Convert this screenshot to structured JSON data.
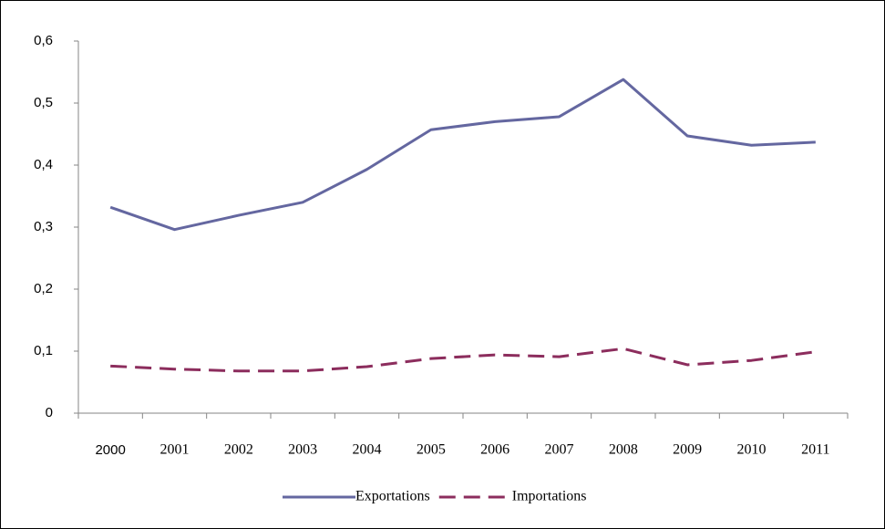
{
  "chart_data": {
    "type": "line",
    "categories": [
      "2000",
      "2001",
      "2002",
      "2003",
      "2004",
      "2005",
      "2006",
      "2007",
      "2008",
      "2009",
      "2010",
      "2011"
    ],
    "series": [
      {
        "name": "Exportations",
        "color": "#6467a0",
        "line_style": "solid",
        "values": [
          0.332,
          0.296,
          0.319,
          0.34,
          0.393,
          0.457,
          0.47,
          0.478,
          0.538,
          0.447,
          0.432,
          0.437
        ]
      },
      {
        "name": "Importations",
        "color": "#8c2d5d",
        "line_style": "dashed",
        "values": [
          0.076,
          0.071,
          0.068,
          0.068,
          0.075,
          0.088,
          0.094,
          0.091,
          0.104,
          0.078,
          0.085,
          0.099
        ]
      }
    ],
    "ylim": [
      0,
      0.6
    ],
    "yticks": [
      0,
      {
        "value": 0.1,
        "label": "0,1"
      },
      {
        "value": 0.2,
        "label": "0,2"
      },
      {
        "value": 0.3,
        "label": "0,3"
      },
      {
        "value": 0.4,
        "label": "0,4"
      },
      {
        "value": 0.5,
        "label": "0,5"
      },
      {
        "value": 0.6,
        "label": "0,6"
      }
    ],
    "grid": false,
    "legend": "bottom"
  }
}
